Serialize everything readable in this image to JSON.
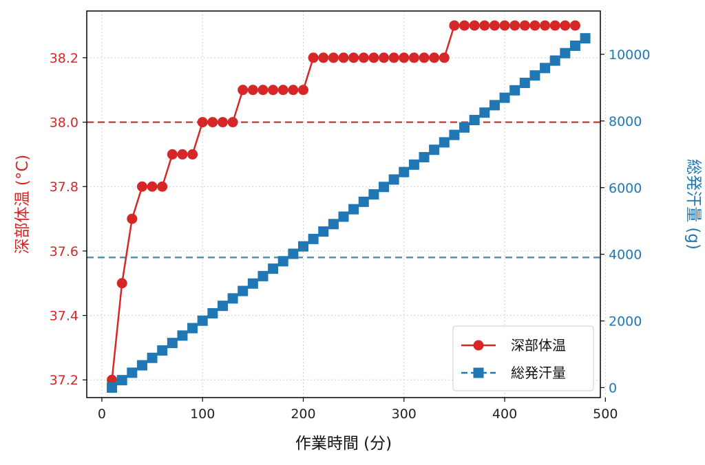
{
  "chart_data": {
    "type": "line",
    "xlabel": "作業時間 (分)",
    "ylabel_left": "深部体温 (°C)",
    "ylabel_right": "総発汗量 (g)",
    "xlim": [
      -15,
      495
    ],
    "ylim_left": [
      37.145,
      38.345
    ],
    "ylim_right": [
      -300,
      11300
    ],
    "x_ticks": [
      0,
      100,
      200,
      300,
      400,
      500
    ],
    "y_left_ticks": [
      "37.2",
      "37.4",
      "37.6",
      "37.8",
      "38.0",
      "38.2"
    ],
    "y_right_ticks": [
      0,
      2000,
      4000,
      6000,
      8000,
      10000
    ],
    "grid": true,
    "legend_position": "bottom-right",
    "x": [
      10,
      20,
      30,
      40,
      50,
      60,
      70,
      80,
      90,
      100,
      110,
      120,
      130,
      140,
      150,
      160,
      170,
      180,
      190,
      200,
      210,
      220,
      230,
      240,
      250,
      260,
      270,
      280,
      290,
      300,
      310,
      320,
      330,
      340,
      350,
      360,
      370,
      380,
      390,
      400,
      410,
      420,
      430,
      440,
      450,
      460,
      470,
      480
    ],
    "series": [
      {
        "name": "深部体温",
        "axis": "left",
        "color": "#d62728",
        "marker": "circle",
        "x": [
          10,
          20,
          30,
          40,
          50,
          60,
          70,
          80,
          90,
          100,
          110,
          120,
          130,
          140,
          150,
          160,
          170,
          180,
          190,
          200,
          210,
          220,
          230,
          240,
          250,
          260,
          270,
          280,
          290,
          300,
          310,
          320,
          330,
          340,
          350,
          360,
          370,
          380,
          390,
          400,
          410,
          420,
          430,
          440,
          450,
          460,
          470
        ],
        "values": [
          37.2,
          37.5,
          37.7,
          37.8,
          37.8,
          37.8,
          37.9,
          37.9,
          37.9,
          38.0,
          38.0,
          38.0,
          38.0,
          38.1,
          38.1,
          38.1,
          38.1,
          38.1,
          38.1,
          38.1,
          38.2,
          38.2,
          38.2,
          38.2,
          38.2,
          38.2,
          38.2,
          38.2,
          38.2,
          38.2,
          38.2,
          38.2,
          38.2,
          38.2,
          38.3,
          38.3,
          38.3,
          38.3,
          38.3,
          38.3,
          38.3,
          38.3,
          38.3,
          38.3,
          38.3,
          38.3,
          38.3
        ]
      },
      {
        "name": "総発汗量",
        "axis": "right",
        "color": "#1f77b4",
        "marker": "square",
        "x": [
          10,
          20,
          30,
          40,
          50,
          60,
          70,
          80,
          90,
          100,
          110,
          120,
          130,
          140,
          150,
          160,
          170,
          180,
          190,
          200,
          210,
          220,
          230,
          240,
          250,
          260,
          270,
          280,
          290,
          300,
          310,
          320,
          330,
          340,
          350,
          360,
          370,
          380,
          390,
          400,
          410,
          420,
          430,
          440,
          450,
          460,
          470,
          480
        ],
        "values": [
          0,
          223,
          446,
          669,
          892,
          1115,
          1338,
          1561,
          1784,
          2007,
          2230,
          2453,
          2676,
          2899,
          3122,
          3345,
          3568,
          3791,
          4014,
          4237,
          4460,
          4683,
          4906,
          5129,
          5352,
          5575,
          5798,
          6021,
          6244,
          6467,
          6690,
          6913,
          7136,
          7359,
          7582,
          7805,
          8028,
          8251,
          8474,
          8697,
          8920,
          9143,
          9366,
          9589,
          9812,
          10035,
          10258,
          10481
        ]
      }
    ],
    "reference_lines": [
      {
        "axis": "left",
        "value": 38.0,
        "color": "#b22222"
      },
      {
        "axis": "left",
        "value": 37.58,
        "color": "#1f77b4"
      }
    ]
  }
}
